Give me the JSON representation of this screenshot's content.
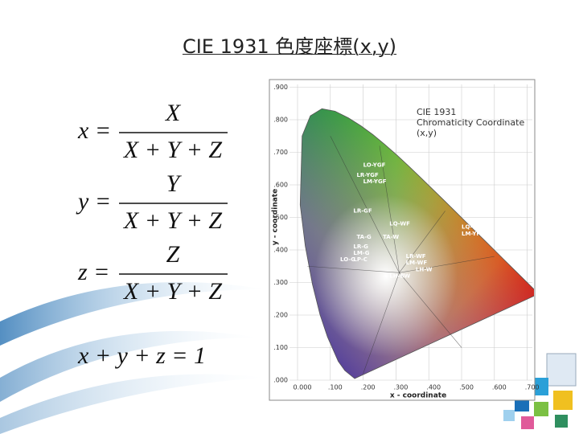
{
  "header": {
    "title": "CIE 1931 色度座標(x,y)"
  },
  "formulas": [
    {
      "lhs": "x =",
      "numerator": "X",
      "denominator": "X + Y + Z"
    },
    {
      "lhs": "y =",
      "numerator": "Y",
      "denominator": "X + Y + Z"
    },
    {
      "lhs": "z =",
      "numerator": "Z",
      "denominator": "X + Y + Z"
    }
  ],
  "sum_formula": "x + y + z = 1",
  "diagram": {
    "title": [
      "CIE 1931",
      "Chromaticity Coordinate",
      "(x,y)"
    ],
    "x_label": "x - coordinate",
    "y_label": "y - coordinate",
    "x_ticks": [
      "0.000",
      ".100",
      ".200",
      ".300",
      ".400",
      ".500",
      ".600",
      ".700"
    ],
    "y_ticks": [
      ".000",
      ".100",
      ".200",
      ".300",
      ".400",
      ".500",
      ".600",
      ".700",
      ".800",
      ".900"
    ],
    "regions": [
      "LO-YGF",
      "LR-YGF",
      "LM-YGF",
      "LR-GF",
      "TA-G",
      "LR-G",
      "LM-G",
      "LP-C",
      "LO-G",
      "TA-W",
      "LQ-WF",
      "LR-WF",
      "LM-WF",
      "LH-W",
      "LH-BW",
      "LQ-YF",
      "LM-YF"
    ]
  }
}
